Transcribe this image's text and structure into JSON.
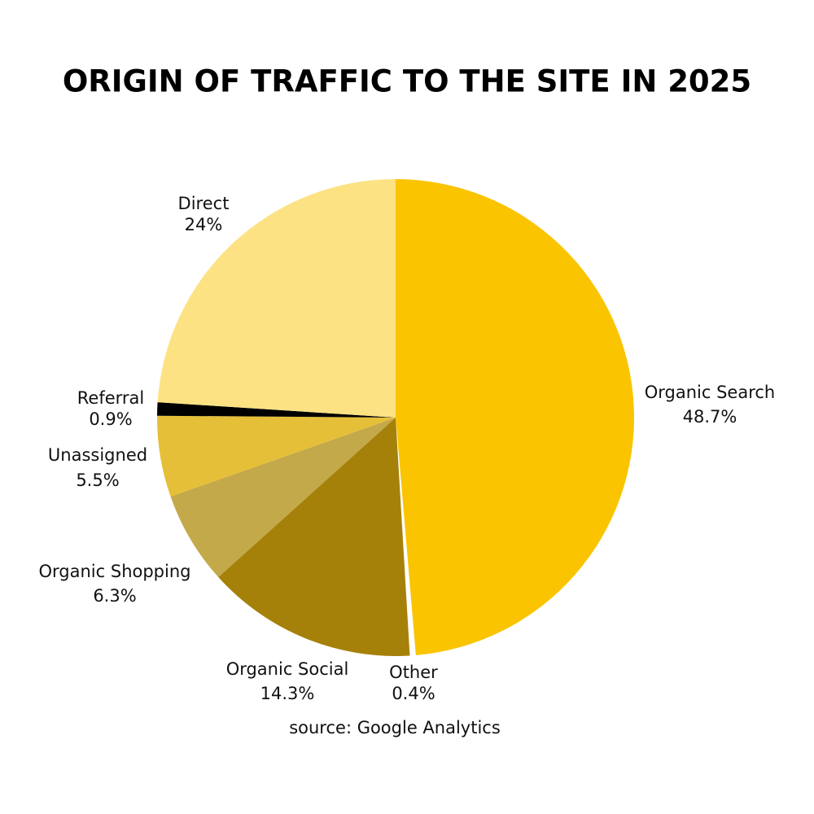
{
  "chart_data": {
    "type": "pie",
    "title": "ORIGIN OF TRAFFIC TO THE SITE IN 2025",
    "source": "source: Google Analytics",
    "categories": [
      "Organic Search",
      "Other",
      "Organic Social",
      "Organic Shopping",
      "Unassigned",
      "Referral",
      "Direct"
    ],
    "values": [
      48.7,
      0.4,
      14.3,
      6.3,
      5.5,
      0.9,
      24
    ],
    "value_labels": [
      "48.7%",
      "0.4%",
      "14.3%",
      "6.3%",
      "5.5%",
      "0.9%",
      "24%"
    ],
    "colors": [
      "#fac400",
      "#ffffff",
      "#a5810a",
      "#c4a94a",
      "#e6bf38",
      "#000000",
      "#fce283"
    ]
  }
}
